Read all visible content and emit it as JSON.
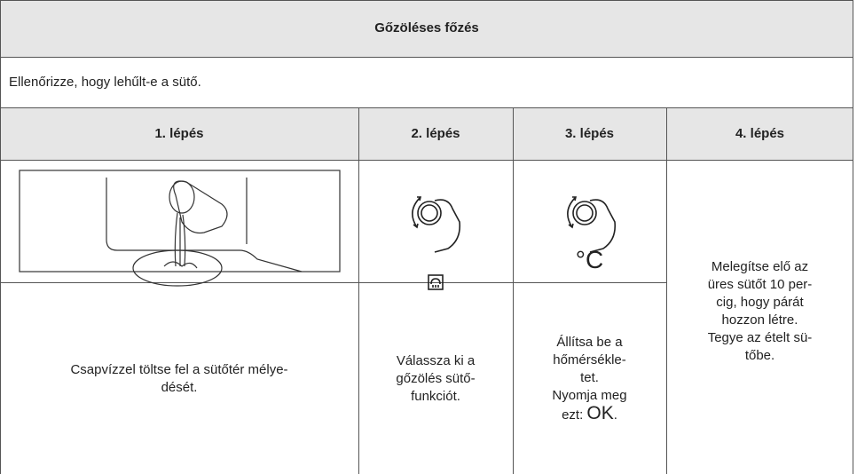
{
  "header": {
    "title": "Gőzöléses főzés"
  },
  "note": "Ellenőrizze, hogy lehűlt-e a sütő.",
  "steps": [
    {
      "label": "1. lépés",
      "lines": [
        "Csapvízzel töltse fel a sütőtér mélye-",
        "dését."
      ]
    },
    {
      "label": "2. lépés",
      "lines": [
        "Válassza ki a",
        "gőzölés sütő-",
        "funkciót."
      ]
    },
    {
      "label": "3. lépés",
      "symbol": "°C",
      "lines": [
        "Állítsa be a",
        "hőmérsékle-",
        "tet.",
        "Nyomja meg"
      ],
      "prompt": "ezt:",
      "key": "OK",
      "end": "."
    },
    {
      "label": "4. lépés",
      "lines": [
        "Melegítse elő az",
        "üres sütőt 10 per-",
        "cig, hogy párát",
        "hozzon létre.",
        "Tegye az ételt sü-",
        "tőbe."
      ]
    }
  ]
}
